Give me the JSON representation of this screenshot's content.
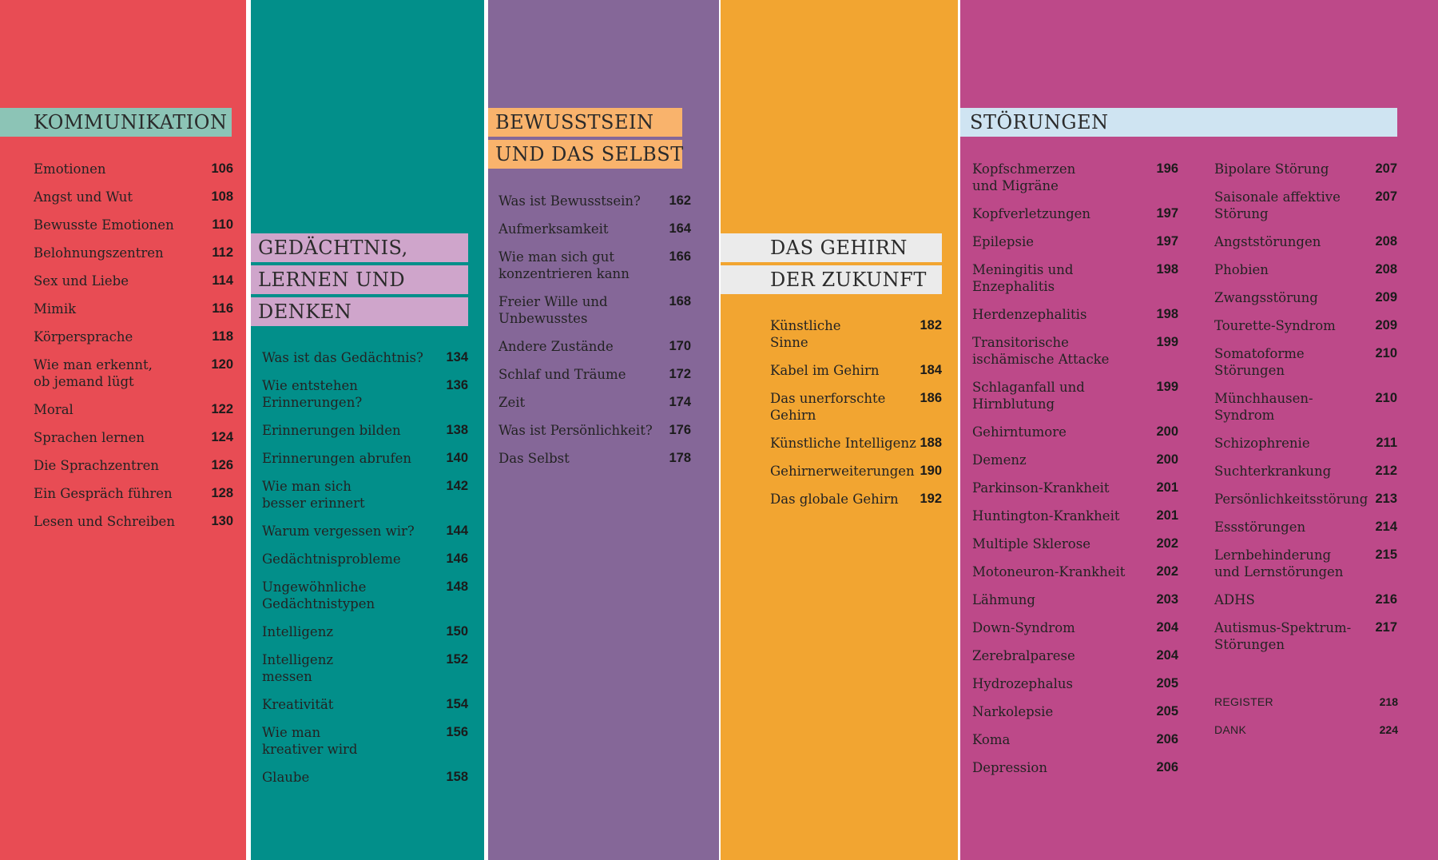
{
  "sections": {
    "kommunikation": {
      "title": "KOMMUNIKATION",
      "entries": [
        {
          "label": "Emotionen",
          "page": "106"
        },
        {
          "label": "Angst und Wut",
          "page": "108"
        },
        {
          "label": "Bewusste Emotionen",
          "page": "110"
        },
        {
          "label": "Belohnungszentren",
          "page": "112"
        },
        {
          "label": "Sex und Liebe",
          "page": "114"
        },
        {
          "label": "Mimik",
          "page": "116"
        },
        {
          "label": "Körpersprache",
          "page": "118"
        },
        {
          "label": "Wie man erkennt,\nob jemand lügt",
          "page": "120"
        },
        {
          "label": "Moral",
          "page": "122"
        },
        {
          "label": "Sprachen lernen",
          "page": "124"
        },
        {
          "label": "Die Sprachzentren",
          "page": "126"
        },
        {
          "label": "Ein Gespräch führen",
          "page": "128"
        },
        {
          "label": "Lesen und Schreiben",
          "page": "130"
        }
      ]
    },
    "gedaechtnis": {
      "title_lines": [
        "GEDÄCHTNIS,",
        "LERNEN UND",
        "DENKEN"
      ],
      "entries": [
        {
          "label": "Was ist das Gedächtnis?",
          "page": "134"
        },
        {
          "label": "Wie entstehen\nErinnerungen?",
          "page": "136"
        },
        {
          "label": "Erinnerungen bilden",
          "page": "138"
        },
        {
          "label": "Erinnerungen abrufen",
          "page": "140"
        },
        {
          "label": "Wie man sich\nbesser erinnert",
          "page": "142"
        },
        {
          "label": "Warum vergessen wir?",
          "page": "144"
        },
        {
          "label": "Gedächtnisprobleme",
          "page": "146"
        },
        {
          "label": "Ungewöhnliche\nGedächtnistypen",
          "page": "148"
        },
        {
          "label": "Intelligenz",
          "page": "150"
        },
        {
          "label": "Intelligenz\nmessen",
          "page": "152"
        },
        {
          "label": "Kreativität",
          "page": "154"
        },
        {
          "label": "Wie man\nkreativer wird",
          "page": "156"
        },
        {
          "label": "Glaube",
          "page": "158"
        }
      ]
    },
    "bewusstsein": {
      "title_lines": [
        "BEWUSSTSEIN",
        "UND DAS SELBST"
      ],
      "entries": [
        {
          "label": "Was ist Bewusstsein?",
          "page": "162"
        },
        {
          "label": "Aufmerksamkeit",
          "page": "164"
        },
        {
          "label": "Wie man sich gut\nkonzentrieren kann",
          "page": "166"
        },
        {
          "label": "Freier Wille und\nUnbewusstes",
          "page": "168"
        },
        {
          "label": "Andere Zustände",
          "page": "170"
        },
        {
          "label": "Schlaf und Träume",
          "page": "172"
        },
        {
          "label": "Zeit",
          "page": "174"
        },
        {
          "label": "Was ist Persönlichkeit?",
          "page": "176"
        },
        {
          "label": "Das Selbst",
          "page": "178"
        }
      ]
    },
    "gehirn_zukunft": {
      "title_lines": [
        "DAS GEHIRN",
        "DER ZUKUNFT"
      ],
      "entries": [
        {
          "label": "Künstliche\nSinne",
          "page": "182"
        },
        {
          "label": "Kabel im Gehirn",
          "page": "184"
        },
        {
          "label": "Das unerforschte\nGehirn",
          "page": "186"
        },
        {
          "label": "Künstliche Intelligenz",
          "page": "188"
        },
        {
          "label": "Gehirnerweiterungen",
          "page": "190"
        },
        {
          "label": "Das globale Gehirn",
          "page": "192"
        }
      ]
    },
    "stoerungen": {
      "title": "STÖRUNGEN",
      "entries_left": [
        {
          "label": "Kopfschmerzen\nund Migräne",
          "page": "196"
        },
        {
          "label": "Kopfverletzungen",
          "page": "197"
        },
        {
          "label": "Epilepsie",
          "page": "197"
        },
        {
          "label": "Meningitis und\nEnzephalitis",
          "page": "198"
        },
        {
          "label": "Herdenzephalitis",
          "page": "198"
        },
        {
          "label": "Transitorische\nischämische Attacke",
          "page": "199"
        },
        {
          "label": "Schlaganfall und\nHirnblutung",
          "page": "199"
        },
        {
          "label": "Gehirntumore",
          "page": "200"
        },
        {
          "label": "Demenz",
          "page": "200"
        },
        {
          "label": "Parkinson-Krankheit",
          "page": "201"
        },
        {
          "label": "Huntington-Krankheit",
          "page": "201"
        },
        {
          "label": "Multiple Sklerose",
          "page": "202"
        },
        {
          "label": "Motoneuron-Krankheit",
          "page": "202"
        },
        {
          "label": "Lähmung",
          "page": "203"
        },
        {
          "label": "Down-Syndrom",
          "page": "204"
        },
        {
          "label": "Zerebralparese",
          "page": "204"
        },
        {
          "label": "Hydrozephalus",
          "page": "205"
        },
        {
          "label": "Narkolepsie",
          "page": "205"
        },
        {
          "label": "Koma",
          "page": "206"
        },
        {
          "label": "Depression",
          "page": "206"
        }
      ],
      "entries_right": [
        {
          "label": "Bipolare Störung",
          "page": "207"
        },
        {
          "label": "Saisonale affektive\nStörung",
          "page": "207"
        },
        {
          "label": "Angststörungen",
          "page": "208"
        },
        {
          "label": "Phobien",
          "page": "208"
        },
        {
          "label": "Zwangsstörung",
          "page": "209"
        },
        {
          "label": "Tourette-Syndrom",
          "page": "209"
        },
        {
          "label": "Somatoforme\nStörungen",
          "page": "210"
        },
        {
          "label": "Münchhausen-\nSyndrom",
          "page": "210"
        },
        {
          "label": "Schizophrenie",
          "page": "211"
        },
        {
          "label": "Suchterkrankung",
          "page": "212"
        },
        {
          "label": "Persönlichkeitsstörung",
          "page": "213"
        },
        {
          "label": "Essstörungen",
          "page": "214"
        },
        {
          "label": "Lernbehinderung\nund Lernstörungen",
          "page": "215"
        },
        {
          "label": "ADHS",
          "page": "216"
        },
        {
          "label": "Autismus-Spektrum-\nStörungen",
          "page": "217"
        }
      ]
    },
    "back_matter": [
      {
        "label": "REGISTER",
        "page": "218"
      },
      {
        "label": "DANK",
        "page": "224"
      }
    ]
  },
  "colors": {
    "kommunikation": "#e84c54",
    "gedaechtnis": "#028f8a",
    "bewusstsein": "#856798",
    "gehirn_zukunft": "#f2a531",
    "stoerungen": "#bd4989"
  }
}
